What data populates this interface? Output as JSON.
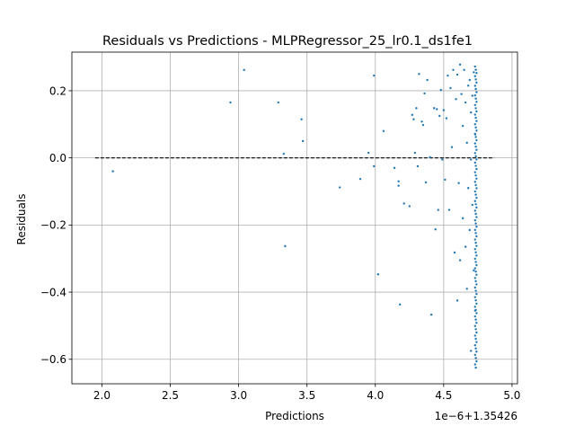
{
  "chart_data": {
    "type": "scatter",
    "title": "Residuals vs Predictions - MLPRegressor_25_lr0.1_ds1fe1",
    "xlabel": "Predictions",
    "ylabel": "Residuals",
    "x_offset_label": "1e−6+1.35426",
    "xlim": [
      1.78,
      5.04
    ],
    "ylim": [
      -0.673,
      0.315
    ],
    "x_ticks": [
      2.0,
      2.5,
      3.0,
      3.5,
      4.0,
      4.5,
      5.0
    ],
    "x_tick_labels": [
      "2.0",
      "2.5",
      "3.0",
      "3.5",
      "4.0",
      "4.5",
      "5.0"
    ],
    "y_ticks": [
      -0.6,
      -0.4,
      -0.2,
      0.0,
      0.2
    ],
    "y_tick_labels": [
      "−0.6",
      "−0.4",
      "−0.2",
      "0.0",
      "0.2"
    ],
    "grid": true,
    "reference_line": {
      "y": 0.0,
      "x_range": [
        1.95,
        4.87
      ],
      "style": "dashed",
      "color": "#000000"
    },
    "point_color": "#1f77b4",
    "points": [
      [
        2.08,
        -0.04
      ],
      [
        2.94,
        0.165
      ],
      [
        3.04,
        0.262
      ],
      [
        3.29,
        0.165
      ],
      [
        3.33,
        0.012
      ],
      [
        3.34,
        -0.263
      ],
      [
        3.46,
        0.115
      ],
      [
        3.47,
        0.05
      ],
      [
        3.74,
        -0.088
      ],
      [
        3.89,
        -0.063
      ],
      [
        3.95,
        0.015
      ],
      [
        3.99,
        0.245
      ],
      [
        3.99,
        -0.025
      ],
      [
        4.02,
        -0.347
      ],
      [
        4.06,
        0.08
      ],
      [
        4.14,
        -0.03
      ],
      [
        4.17,
        -0.07
      ],
      [
        4.17,
        -0.083
      ],
      [
        4.18,
        -0.437
      ],
      [
        4.21,
        -0.136
      ],
      [
        4.25,
        -0.144
      ],
      [
        4.27,
        0.128
      ],
      [
        4.28,
        0.115
      ],
      [
        4.29,
        0.015
      ],
      [
        4.3,
        0.148
      ],
      [
        4.31,
        -0.025
      ],
      [
        4.32,
        0.25
      ],
      [
        4.34,
        0.108
      ],
      [
        4.35,
        0.098
      ],
      [
        4.36,
        0.192
      ],
      [
        4.37,
        -0.073
      ],
      [
        4.38,
        0.232
      ],
      [
        4.4,
        0.002
      ],
      [
        4.41,
        -0.467
      ],
      [
        4.43,
        0.148
      ],
      [
        4.44,
        -0.213
      ],
      [
        4.45,
        0.145
      ],
      [
        4.46,
        -0.155
      ],
      [
        4.47,
        0.125
      ],
      [
        4.48,
        0.202
      ],
      [
        4.49,
        -0.005
      ],
      [
        4.5,
        0.142
      ],
      [
        4.51,
        -0.065
      ],
      [
        4.52,
        0.118
      ],
      [
        4.53,
        0.245
      ],
      [
        4.54,
        -0.155
      ],
      [
        4.55,
        0.208
      ],
      [
        4.56,
        0.032
      ],
      [
        4.57,
        0.262
      ],
      [
        4.58,
        -0.282
      ],
      [
        4.59,
        0.175
      ],
      [
        4.6,
        -0.425
      ],
      [
        4.6,
        0.248
      ],
      [
        4.61,
        -0.075
      ],
      [
        4.62,
        0.278
      ],
      [
        4.62,
        -0.305
      ],
      [
        4.63,
        0.19
      ],
      [
        4.64,
        0.095
      ],
      [
        4.64,
        -0.18
      ],
      [
        4.65,
        0.262
      ],
      [
        4.66,
        0.165
      ],
      [
        4.66,
        -0.265
      ],
      [
        4.67,
        0.045
      ],
      [
        4.67,
        -0.39
      ],
      [
        4.68,
        0.215
      ],
      [
        4.68,
        -0.09
      ],
      [
        4.69,
        0.232
      ],
      [
        4.69,
        -0.215
      ],
      [
        4.7,
        0.135
      ],
      [
        4.7,
        -0.005
      ],
      [
        4.7,
        -0.575
      ],
      [
        4.71,
        0.185
      ],
      [
        4.71,
        -0.14
      ],
      [
        4.72,
        0.255
      ],
      [
        4.72,
        -0.335
      ],
      [
        4.73,
        0.07
      ],
      [
        4.73,
        -0.455
      ]
    ]
  }
}
